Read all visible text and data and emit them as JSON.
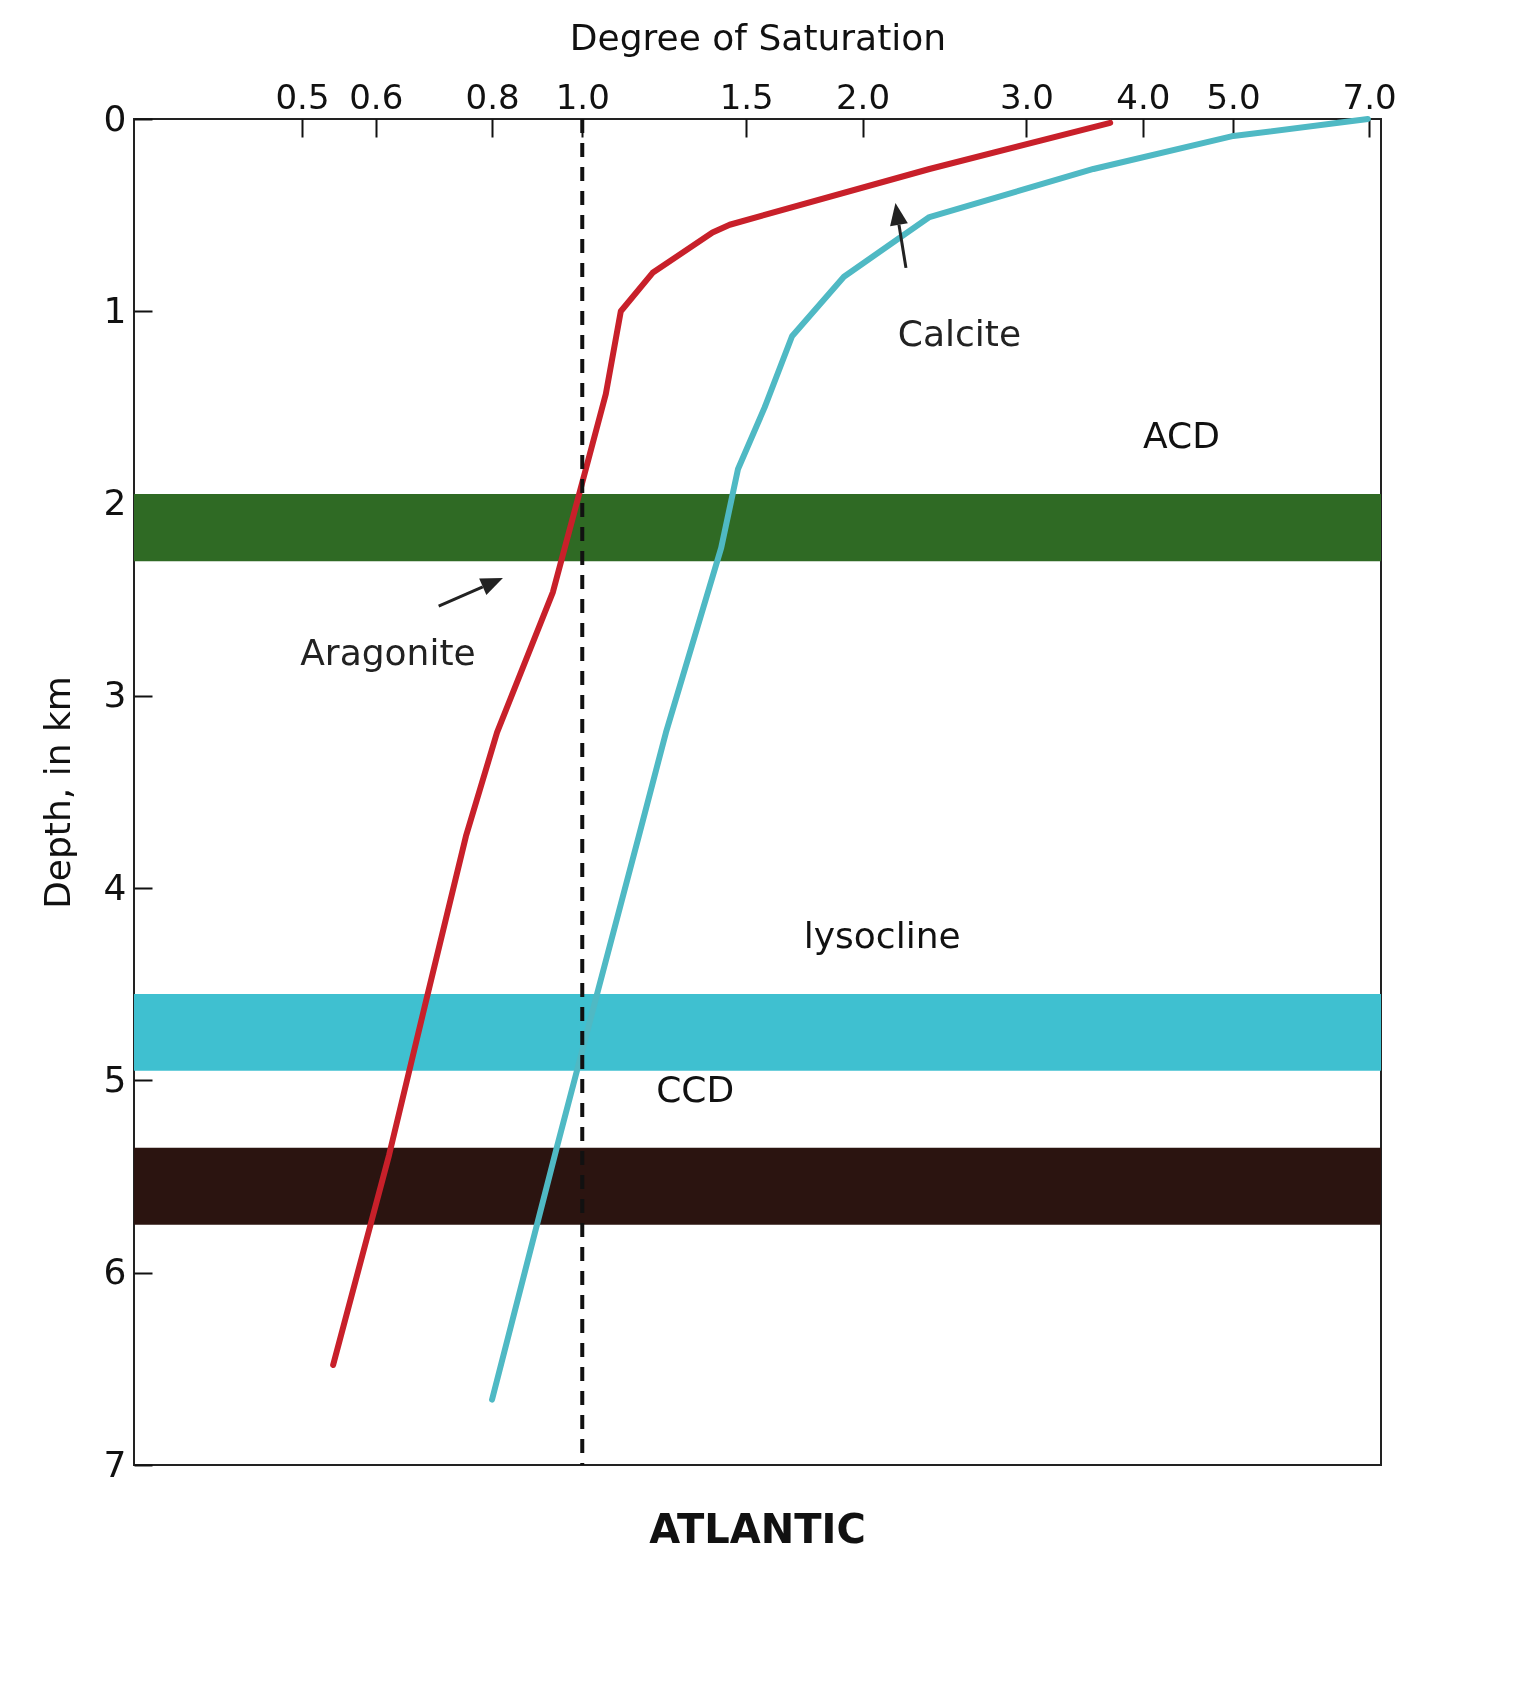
{
  "chart_data": {
    "type": "line",
    "title": "ATLANTIC",
    "xlabel": "Degree of Saturation",
    "ylabel": "Depth, in km",
    "log": "x",
    "xlim": [
      0.33,
      7.21
    ],
    "ylim": [
      7,
      0
    ],
    "xticks": [
      0.5,
      0.6,
      0.8,
      {
        "value": 1,
        "label": "1.0"
      },
      1.5,
      {
        "value": 2,
        "label": "2.0"
      },
      {
        "value": 3,
        "label": "3.0"
      },
      {
        "value": 4,
        "label": "4.0"
      },
      {
        "value": 5,
        "label": "5.0"
      },
      {
        "value": 7,
        "label": "7.0"
      }
    ],
    "yticks": [
      0,
      1,
      2,
      3,
      4,
      5,
      6,
      7
    ],
    "grid": false,
    "legend": false,
    "series": [
      {
        "name": "Aragonite",
        "color": "#c8202a",
        "x": [
          3.69,
          2.36,
          1.44,
          1.38,
          1.19,
          1.1,
          1.06,
          1.0,
          0.93,
          0.81,
          0.75,
          0.68,
          0.62,
          0.54
        ],
        "values": [
          0.02,
          0.26,
          0.55,
          0.59,
          0.8,
          1.0,
          1.43,
          1.89,
          2.46,
          3.19,
          3.73,
          4.58,
          5.39,
          6.48
        ]
      },
      {
        "name": "Calcite",
        "color": "#4fb9c4",
        "x": [
          6.98,
          4.98,
          3.54,
          2.36,
          1.91,
          1.68,
          1.57,
          1.47,
          1.41,
          1.23,
          1.15,
          1.04,
          0.94,
          0.8
        ],
        "values": [
          0,
          0.09,
          0.26,
          0.51,
          0.82,
          1.13,
          1.5,
          1.82,
          2.23,
          3.19,
          3.73,
          4.53,
          5.34,
          6.66
        ]
      }
    ],
    "ref_lines": [
      {
        "axis": "x",
        "value": 1,
        "line_style": "dashed",
        "color": "#111111"
      }
    ],
    "bands": [
      {
        "axis": "y",
        "from": 1.95,
        "to": 2.3,
        "label": "ACD",
        "color": "#2f6a24"
      },
      {
        "axis": "y",
        "from": 4.55,
        "to": 4.95,
        "label": "lysocline",
        "color": "#3fc0d0"
      },
      {
        "axis": "y",
        "from": 5.35,
        "to": 5.75,
        "label": "CCD",
        "color": "#2b1410"
      }
    ]
  }
}
